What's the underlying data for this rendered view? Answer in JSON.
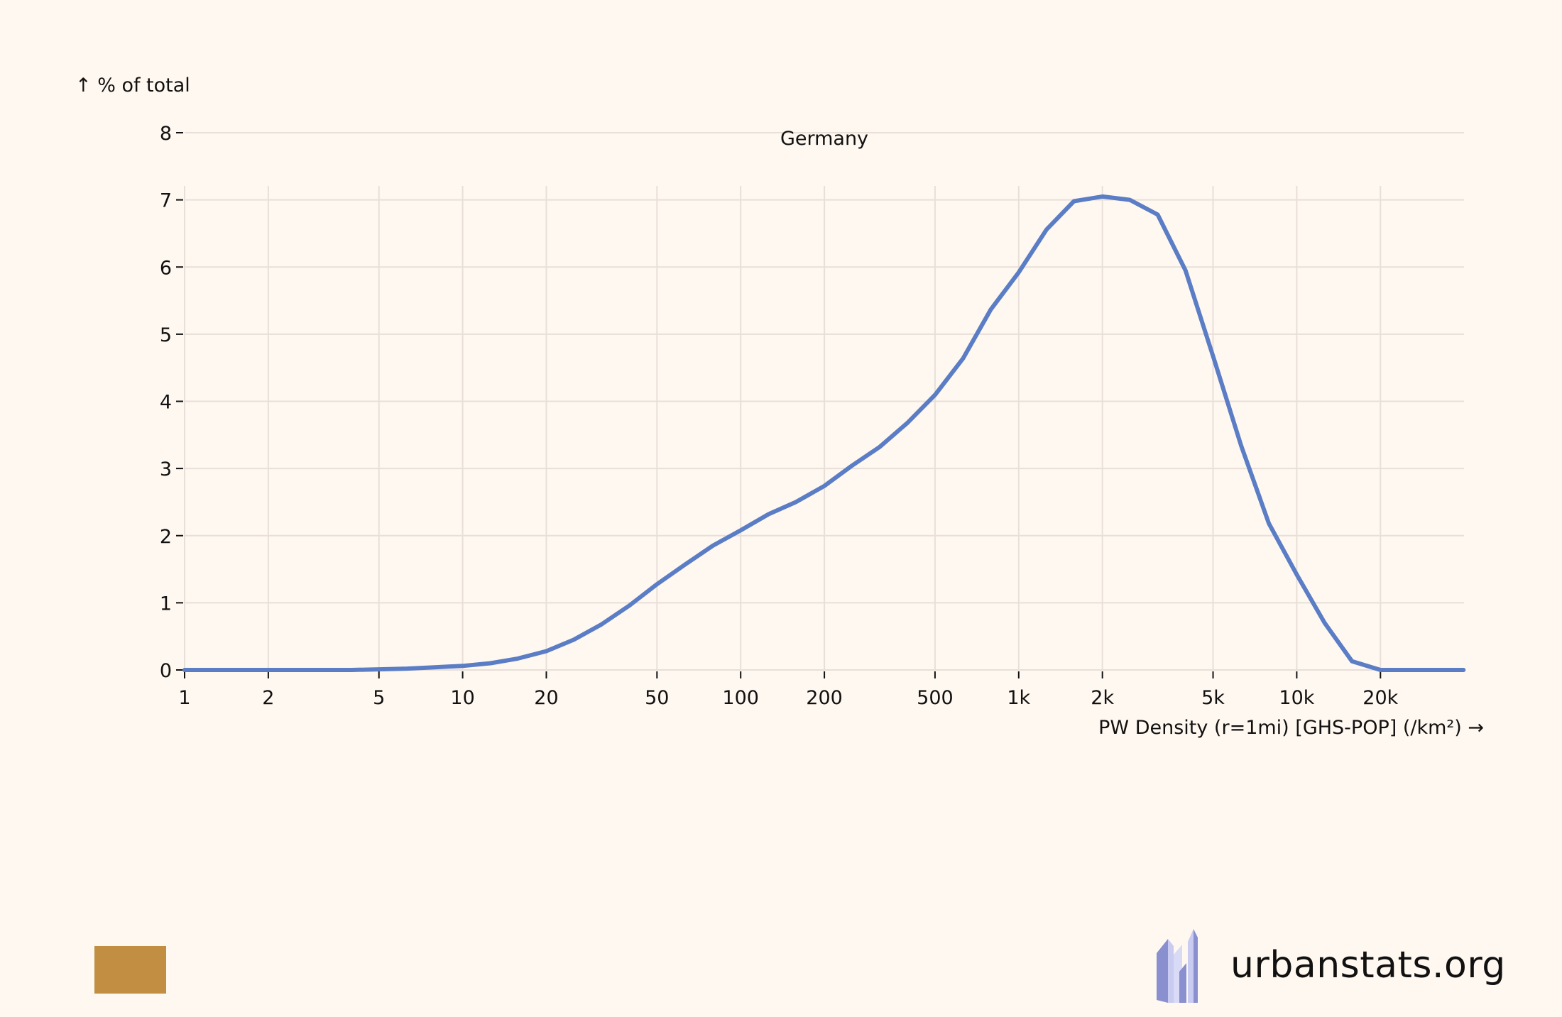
{
  "chart_data": {
    "type": "line",
    "title": "Germany",
    "ylabel": "↑ % of total",
    "xlabel": "PW Density (r=1mi) [GHS-POP] (/km²) →",
    "x_scale": "log",
    "xlim": [
      1,
      40000
    ],
    "ylim": [
      0,
      8
    ],
    "grid": true,
    "x_ticks": [
      {
        "value": 1,
        "label": "1"
      },
      {
        "value": 2,
        "label": "2"
      },
      {
        "value": 5,
        "label": "5"
      },
      {
        "value": 10,
        "label": "10"
      },
      {
        "value": 20,
        "label": "20"
      },
      {
        "value": 50,
        "label": "50"
      },
      {
        "value": 100,
        "label": "100"
      },
      {
        "value": 200,
        "label": "200"
      },
      {
        "value": 500,
        "label": "500"
      },
      {
        "value": 1000,
        "label": "1k"
      },
      {
        "value": 2000,
        "label": "2k"
      },
      {
        "value": 5000,
        "label": "5k"
      },
      {
        "value": 10000,
        "label": "10k"
      },
      {
        "value": 20000,
        "label": "20k"
      }
    ],
    "y_ticks": [
      0,
      1,
      2,
      3,
      4,
      5,
      6,
      7,
      8
    ],
    "series": [
      {
        "name": "Germany",
        "color": "#5a7dc5",
        "points": [
          [
            1,
            0.0
          ],
          [
            1.26,
            0.0
          ],
          [
            1.58,
            0.0
          ],
          [
            2,
            0.0
          ],
          [
            2.51,
            0.0
          ],
          [
            3.16,
            0.0
          ],
          [
            3.98,
            0.0
          ],
          [
            5.01,
            0.01
          ],
          [
            6.31,
            0.02
          ],
          [
            7.94,
            0.04
          ],
          [
            10,
            0.06
          ],
          [
            12.6,
            0.1
          ],
          [
            15.8,
            0.17
          ],
          [
            20,
            0.28
          ],
          [
            25.1,
            0.45
          ],
          [
            31.6,
            0.68
          ],
          [
            39.8,
            0.96
          ],
          [
            50.1,
            1.28
          ],
          [
            63.1,
            1.57
          ],
          [
            79.4,
            1.85
          ],
          [
            100,
            2.08
          ],
          [
            126,
            2.32
          ],
          [
            158,
            2.5
          ],
          [
            200,
            2.74
          ],
          [
            251,
            3.04
          ],
          [
            316,
            3.32
          ],
          [
            398,
            3.68
          ],
          [
            501,
            4.1
          ],
          [
            631,
            4.64
          ],
          [
            794,
            5.37
          ],
          [
            1000,
            5.92
          ],
          [
            1260,
            6.56
          ],
          [
            1580,
            6.98
          ],
          [
            2000,
            7.05
          ],
          [
            2510,
            7.0
          ],
          [
            3160,
            6.78
          ],
          [
            3980,
            5.95
          ],
          [
            5010,
            4.66
          ],
          [
            6310,
            3.34
          ],
          [
            7940,
            2.18
          ],
          [
            10000,
            1.42
          ],
          [
            12600,
            0.7
          ],
          [
            15800,
            0.13
          ],
          [
            20000,
            0.0
          ],
          [
            25100,
            0.0
          ],
          [
            31600,
            0.0
          ],
          [
            39800,
            0.0
          ]
        ]
      }
    ]
  },
  "colors": {
    "background": "#fff8f0",
    "grid": "#e8e0d8",
    "swatch": "#c28e42",
    "logo_dark": "#8a8fcf",
    "logo_light": "#c9cbf0"
  },
  "footer": {
    "swatch_color": "#c28e42",
    "brand": "urbanstats.org",
    "logo_icon": "city-buildings-icon"
  }
}
